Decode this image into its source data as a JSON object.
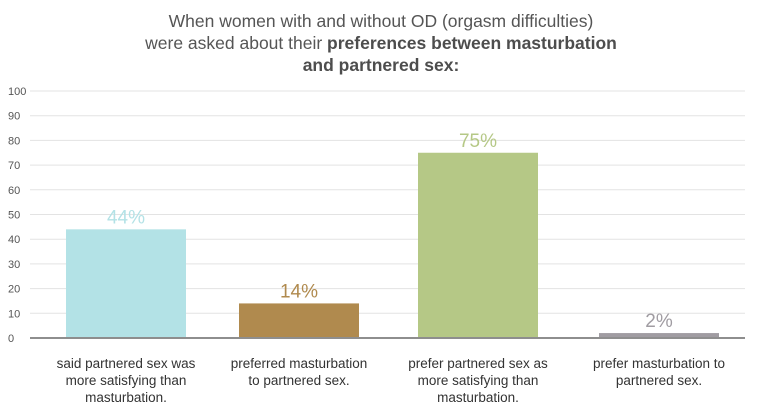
{
  "title": {
    "line1": "When women with and without OD (orgasm difficulties)",
    "line2_normal": "were asked about their ",
    "line2_bold": "preferences between masturbation",
    "line3_bold": "and partnered sex:"
  },
  "chart_data": {
    "type": "bar",
    "categories": [
      "said partnered sex was more satisfying than masturbation.",
      "preferred masturbation to partnered sex.",
      "prefer partnered sex as more satisfying than masturbation.",
      "prefer masturbation to partnered sex."
    ],
    "category_lines": [
      [
        "said partnered sex was",
        "more satisfying than",
        "masturbation."
      ],
      [
        "preferred masturbation",
        "to partnered sex."
      ],
      [
        "prefer partnered sex as",
        "more satisfying than",
        "masturbation."
      ],
      [
        "prefer masturbation to",
        "partnered sex."
      ]
    ],
    "values": [
      44,
      14,
      75,
      2
    ],
    "data_labels": [
      "44%",
      "14%",
      "75%",
      "2%"
    ],
    "colors": [
      "#b3e2e6",
      "#b08a4e",
      "#b5c886",
      "#a09ca2"
    ],
    "ylim": [
      0,
      100
    ],
    "yticks": [
      0,
      10,
      20,
      30,
      40,
      50,
      60,
      70,
      80,
      90,
      100
    ],
    "grid": true
  }
}
